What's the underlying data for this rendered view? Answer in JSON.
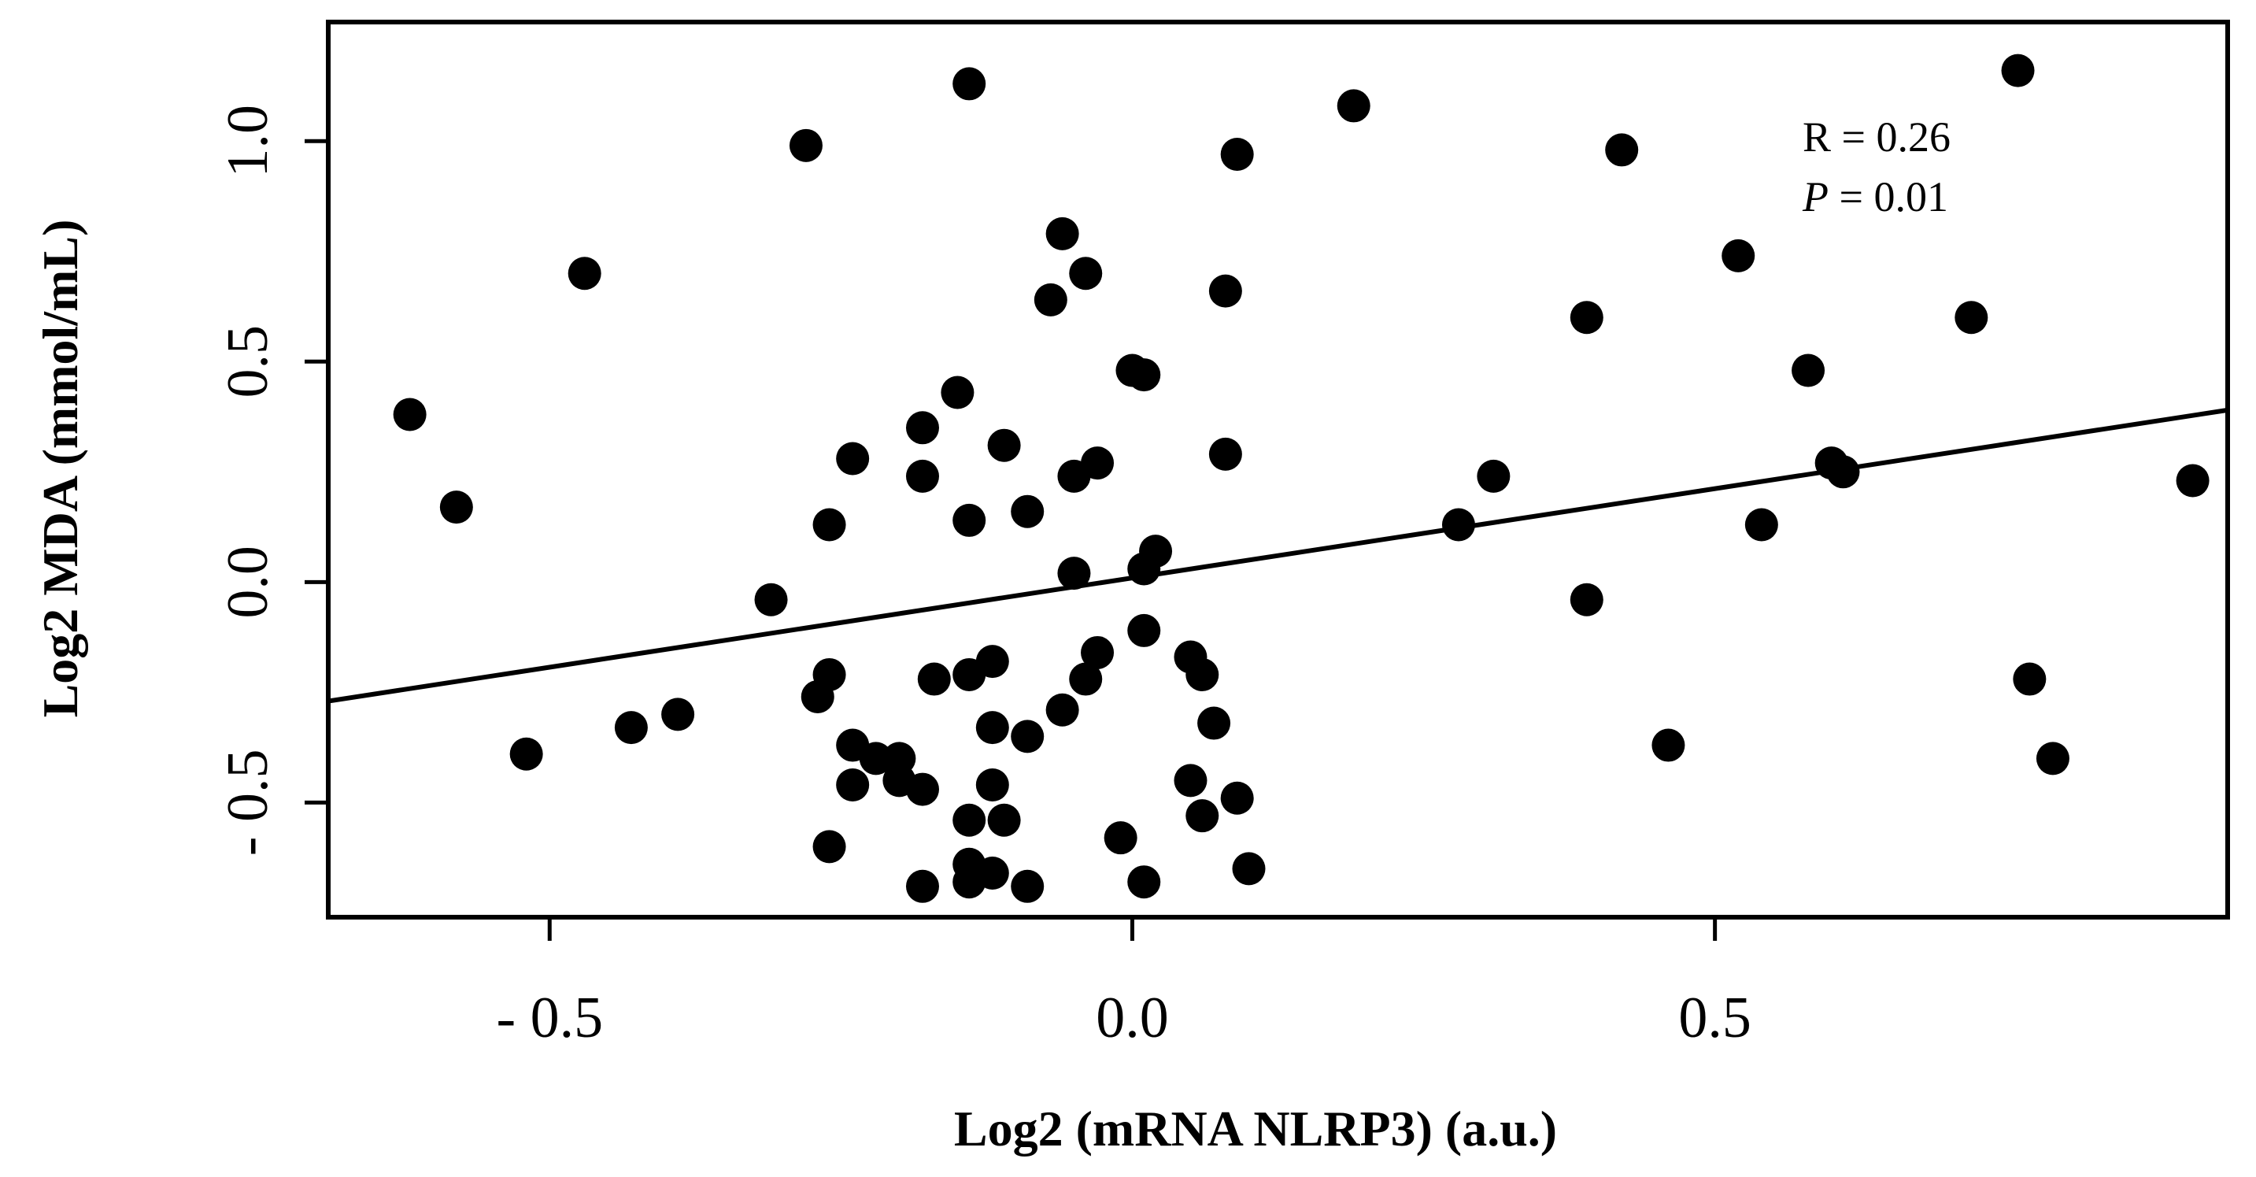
{
  "chart_data": {
    "type": "scatter",
    "title": "",
    "xlabel": "Log2 (mRNA NLRP3) (a.u.)",
    "ylabel": "Log2  MDA (mmol/mL)",
    "xlim": [
      -0.69,
      0.94
    ],
    "ylim": [
      -0.76,
      1.27
    ],
    "xticks": [
      -0.5,
      0.0,
      0.5
    ],
    "xtick_labels": [
      "- 0.5",
      "0.0",
      "0.5"
    ],
    "yticks": [
      -0.5,
      0.0,
      0.5,
      1.0
    ],
    "ytick_labels": [
      "- 0.5",
      "0.0",
      "0.5",
      "1.0"
    ],
    "grid": false,
    "legend": "none",
    "marker_color": "#000000",
    "annotation": {
      "r_text": "R = 0.26",
      "p_label": "P",
      "p_text": " = 0.01"
    },
    "regression_line": {
      "x": [
        -0.69,
        0.94
      ],
      "y": [
        -0.27,
        0.39
      ]
    },
    "points": [
      [
        -0.62,
        0.38
      ],
      [
        -0.58,
        0.17
      ],
      [
        -0.52,
        -0.39
      ],
      [
        -0.47,
        0.7
      ],
      [
        -0.43,
        -0.33
      ],
      [
        -0.39,
        -0.3
      ],
      [
        -0.31,
        -0.04
      ],
      [
        -0.28,
        0.99
      ],
      [
        -0.27,
        -0.26
      ],
      [
        -0.26,
        -0.21
      ],
      [
        -0.26,
        0.13
      ],
      [
        -0.26,
        -0.6
      ],
      [
        -0.24,
        0.28
      ],
      [
        -0.24,
        -0.46
      ],
      [
        -0.24,
        -0.37
      ],
      [
        -0.22,
        -0.4
      ],
      [
        -0.2,
        -0.4
      ],
      [
        -0.2,
        -0.45
      ],
      [
        -0.18,
        0.35
      ],
      [
        -0.18,
        -0.47
      ],
      [
        -0.18,
        0.24
      ],
      [
        -0.17,
        -0.22
      ],
      [
        -0.18,
        -0.69
      ],
      [
        -0.15,
        0.43
      ],
      [
        -0.14,
        1.13
      ],
      [
        -0.14,
        0.14
      ],
      [
        -0.14,
        -0.21
      ],
      [
        -0.14,
        -0.54
      ],
      [
        -0.14,
        -0.64
      ],
      [
        -0.14,
        -0.68
      ],
      [
        -0.12,
        -0.66
      ],
      [
        -0.12,
        -0.18
      ],
      [
        -0.12,
        -0.33
      ],
      [
        -0.12,
        -0.46
      ],
      [
        -0.11,
        0.31
      ],
      [
        -0.11,
        -0.54
      ],
      [
        -0.09,
        0.16
      ],
      [
        -0.09,
        -0.35
      ],
      [
        -0.09,
        -0.69
      ],
      [
        -0.07,
        0.64
      ],
      [
        -0.06,
        0.79
      ],
      [
        -0.06,
        -0.29
      ],
      [
        -0.05,
        0.24
      ],
      [
        -0.04,
        0.7
      ],
      [
        -0.05,
        0.02
      ],
      [
        -0.04,
        -0.22
      ],
      [
        -0.03,
        0.27
      ],
      [
        -0.03,
        -0.16
      ],
      [
        -0.01,
        -0.58
      ],
      [
        0.0,
        0.48
      ],
      [
        0.01,
        0.47
      ],
      [
        0.01,
        -0.11
      ],
      [
        0.01,
        0.03
      ],
      [
        0.02,
        0.07
      ],
      [
        0.01,
        -0.68
      ],
      [
        0.05,
        -0.45
      ],
      [
        0.05,
        -0.17
      ],
      [
        0.06,
        -0.21
      ],
      [
        0.06,
        -0.53
      ],
      [
        0.07,
        -0.32
      ],
      [
        0.08,
        0.66
      ],
      [
        0.08,
        0.29
      ],
      [
        0.09,
        0.97
      ],
      [
        0.09,
        -0.49
      ],
      [
        0.1,
        -0.65
      ],
      [
        0.19,
        1.08
      ],
      [
        0.28,
        0.13
      ],
      [
        0.31,
        0.24
      ],
      [
        0.39,
        0.6
      ],
      [
        0.39,
        -0.04
      ],
      [
        0.42,
        0.98
      ],
      [
        0.46,
        -0.37
      ],
      [
        0.52,
        0.74
      ],
      [
        0.54,
        0.13
      ],
      [
        0.58,
        0.48
      ],
      [
        0.6,
        0.27
      ],
      [
        0.61,
        0.25
      ],
      [
        0.72,
        0.6
      ],
      [
        0.76,
        1.16
      ],
      [
        0.77,
        -0.22
      ],
      [
        0.79,
        -0.4
      ],
      [
        0.91,
        0.23
      ]
    ]
  }
}
